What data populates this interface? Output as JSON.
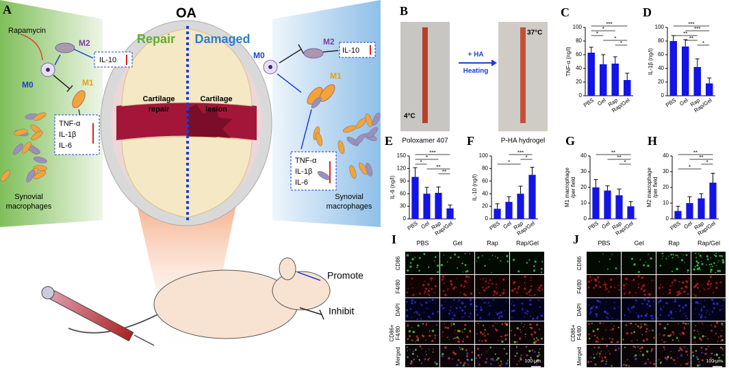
{
  "figure_a": {
    "letter": "A",
    "title": "OA",
    "drug": "Rapamycin",
    "left_m0": "M0",
    "left_m2": "M2",
    "left_il10": "IL-10",
    "left_m1": "M1",
    "left_cytokines": [
      "TNF-α",
      "IL-1β",
      "IL-6"
    ],
    "left_cells": [
      "Synovial",
      "macrophages"
    ],
    "repair": "Repair",
    "damaged": "Damaged",
    "cartilage_repair": [
      "Cartilage",
      "repair"
    ],
    "cartilage_lesion": [
      "Cartilage",
      "lesion"
    ],
    "right_m0": "M0",
    "right_m2": "M2",
    "right_il10": "IL-10",
    "right_m1": "M1",
    "right_cytokines": [
      "TNF-α",
      "IL-1β",
      "IL-6"
    ],
    "right_cells": [
      "Synovial",
      "macrophages"
    ],
    "legend": [
      "Promote",
      "Inhibit"
    ]
  },
  "figure_b": {
    "letter": "B",
    "cold": "4°C",
    "step": [
      "+ HA",
      "Heating"
    ],
    "warm": "37°C",
    "captions": [
      "Poloxamer 407",
      "P-HA hydrogel"
    ]
  },
  "chart_data": [
    {
      "letter": "C",
      "type": "bar",
      "ylabel": [
        "TNF-α (ng/l)"
      ],
      "categories": [
        "PBS",
        "Gel",
        "Rap",
        "Rap/Gel"
      ],
      "values": [
        63,
        46,
        47,
        23
      ],
      "errors": [
        8,
        14,
        10,
        10
      ],
      "ylim": [
        0,
        100
      ],
      "yticks": [
        0,
        20,
        40,
        60,
        80,
        100
      ],
      "color": "#1414e6",
      "significance": [
        {
          "from": 0,
          "to": 3,
          "label": "***"
        },
        {
          "from": 0,
          "to": 2,
          "label": "*"
        },
        {
          "from": 0,
          "to": 1,
          "label": "*"
        },
        {
          "from": 1,
          "to": 3,
          "label": "*"
        },
        {
          "from": 2,
          "to": 3,
          "label": "*"
        }
      ]
    },
    {
      "letter": "D",
      "type": "bar",
      "ylabel": [
        "IL-1β (ng/l)"
      ],
      "categories": [
        "PBS",
        "Gel",
        "Rap",
        "Rap/Gel"
      ],
      "values": [
        80,
        72,
        42,
        18
      ],
      "errors": [
        8,
        10,
        12,
        8
      ],
      "ylim": [
        0,
        100
      ],
      "yticks": [
        0,
        20,
        40,
        60,
        80,
        100
      ],
      "color": "#1414e6",
      "significance": [
        {
          "from": 0,
          "to": 3,
          "label": "***"
        },
        {
          "from": 1,
          "to": 3,
          "label": "***"
        },
        {
          "from": 0,
          "to": 2,
          "label": "**"
        },
        {
          "from": 1,
          "to": 2,
          "label": "**"
        },
        {
          "from": 2,
          "to": 3,
          "label": "*"
        }
      ]
    },
    {
      "letter": "E",
      "type": "bar",
      "ylabel": [
        "IL-6 (ng/l)"
      ],
      "categories": [
        "PBS",
        "Gel",
        "Rap",
        "Rap/Gel"
      ],
      "values": [
        100,
        60,
        62,
        25
      ],
      "errors": [
        22,
        15,
        14,
        8
      ],
      "ylim": [
        0,
        150
      ],
      "yticks": [
        0,
        30,
        60,
        90,
        120,
        150
      ],
      "color": "#1414e6",
      "significance": [
        {
          "from": 0,
          "to": 3,
          "label": "***"
        },
        {
          "from": 0,
          "to": 2,
          "label": "*"
        },
        {
          "from": 0,
          "to": 1,
          "label": "*"
        },
        {
          "from": 1,
          "to": 3,
          "label": "**"
        },
        {
          "from": 2,
          "to": 3,
          "label": "**"
        }
      ]
    },
    {
      "letter": "F",
      "type": "bar",
      "ylabel": [
        "IL-10 (ng/l)"
      ],
      "categories": [
        "PBS",
        "Gel",
        "Rap",
        "Rap/Gel"
      ],
      "values": [
        16,
        27,
        40,
        70
      ],
      "errors": [
        8,
        8,
        12,
        12
      ],
      "ylim": [
        0,
        100
      ],
      "yticks": [
        0,
        20,
        40,
        60,
        80,
        100
      ],
      "color": "#1414e6",
      "significance": [
        {
          "from": 1,
          "to": 3,
          "label": "***"
        },
        {
          "from": 2,
          "to": 3,
          "label": "*"
        },
        {
          "from": 0,
          "to": 2,
          "label": "*"
        }
      ]
    },
    {
      "letter": "G",
      "type": "bar",
      "ylabel": [
        "M1 macrophage",
        "/per field"
      ],
      "categories": [
        "PBS",
        "Gel",
        "Rap",
        "Rap/Gel"
      ],
      "values": [
        20,
        18,
        15,
        8
      ],
      "errors": [
        5,
        3,
        4,
        3
      ],
      "ylim": [
        0,
        40
      ],
      "yticks": [
        0,
        10,
        20,
        30,
        40
      ],
      "color": "#1414e6",
      "significance": [
        {
          "from": 0,
          "to": 3,
          "label": "**"
        },
        {
          "from": 1,
          "to": 3,
          "label": "**"
        },
        {
          "from": 2,
          "to": 3,
          "label": "*"
        }
      ]
    },
    {
      "letter": "H",
      "type": "bar",
      "ylabel": [
        "M2 macrophage",
        "/per field"
      ],
      "categories": [
        "PBS",
        "Gel",
        "Rap",
        "Rap/Gel"
      ],
      "values": [
        5,
        10,
        13,
        23
      ],
      "errors": [
        3,
        4,
        3,
        6
      ],
      "ylim": [
        0,
        40
      ],
      "yticks": [
        0,
        10,
        20,
        30,
        40
      ],
      "color": "#1414e6",
      "significance": [
        {
          "from": 0,
          "to": 3,
          "label": "**"
        },
        {
          "from": 1,
          "to": 3,
          "label": "**"
        },
        {
          "from": 2,
          "to": 3,
          "label": "*"
        },
        {
          "from": 0,
          "to": 2,
          "label": "*"
        }
      ]
    }
  ],
  "figure_i": {
    "letter": "I",
    "columns": [
      "PBS",
      "Gel",
      "Rap",
      "Rap/Gel"
    ],
    "rows": [
      [
        "CD86"
      ],
      [
        "F4/80"
      ],
      [
        "DAPI"
      ],
      [
        "CD86+",
        "F4/80"
      ],
      [
        "Merged"
      ]
    ],
    "scale": "100 μm"
  },
  "figure_j": {
    "letter": "J",
    "columns": [
      "PBS",
      "Gel",
      "Rap",
      "Rap/Gel"
    ],
    "rows": [
      [
        "CD86"
      ],
      [
        "F4/80"
      ],
      [
        "DAPI"
      ],
      [
        "CD86+",
        "F4/80"
      ],
      [
        "Merged"
      ]
    ],
    "scale": "100 μm"
  }
}
